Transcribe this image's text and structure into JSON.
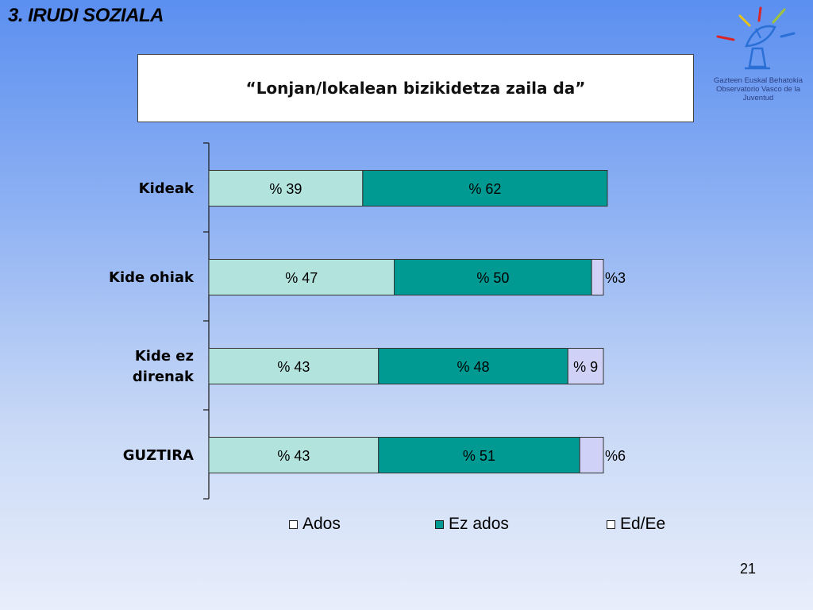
{
  "slide": {
    "title": "3. IRUDI SOZIALA",
    "page_number": "21"
  },
  "logo": {
    "line1": "Gazteen Euskal Behatokia",
    "line2": "Observatorio Vasco de la Juventud",
    "colors": [
      "#e8c41a",
      "#d8262b",
      "#9fc43c",
      "#2a6fd6",
      "#2a4aa0"
    ]
  },
  "colors": {
    "ados": "#b3e3dd",
    "ez_ados": "#009a93",
    "ed_ee": "#cfd1f7"
  },
  "chart_data": {
    "type": "bar",
    "orientation": "horizontal",
    "stacked": true,
    "title": "“Lonjan/lokalean bizikidetza zaila da”",
    "categories": [
      "Kideak",
      "Kide ohiak",
      "Kide ez direnak",
      "GUZTIRA"
    ],
    "series": [
      {
        "name": "Ados",
        "values": [
          39,
          47,
          43,
          43
        ],
        "labels": [
          "% 39",
          "% 47",
          "% 43",
          "% 43"
        ]
      },
      {
        "name": "Ez ados",
        "values": [
          62,
          50,
          48,
          51
        ],
        "labels": [
          "% 62",
          "% 50",
          "% 48",
          "% 51"
        ]
      },
      {
        "name": "Ed/Ee",
        "values": [
          0,
          3,
          9,
          6
        ],
        "labels": [
          "",
          "%3",
          "% 9",
          "%6"
        ]
      }
    ],
    "legend_position": "bottom",
    "grid": false
  }
}
